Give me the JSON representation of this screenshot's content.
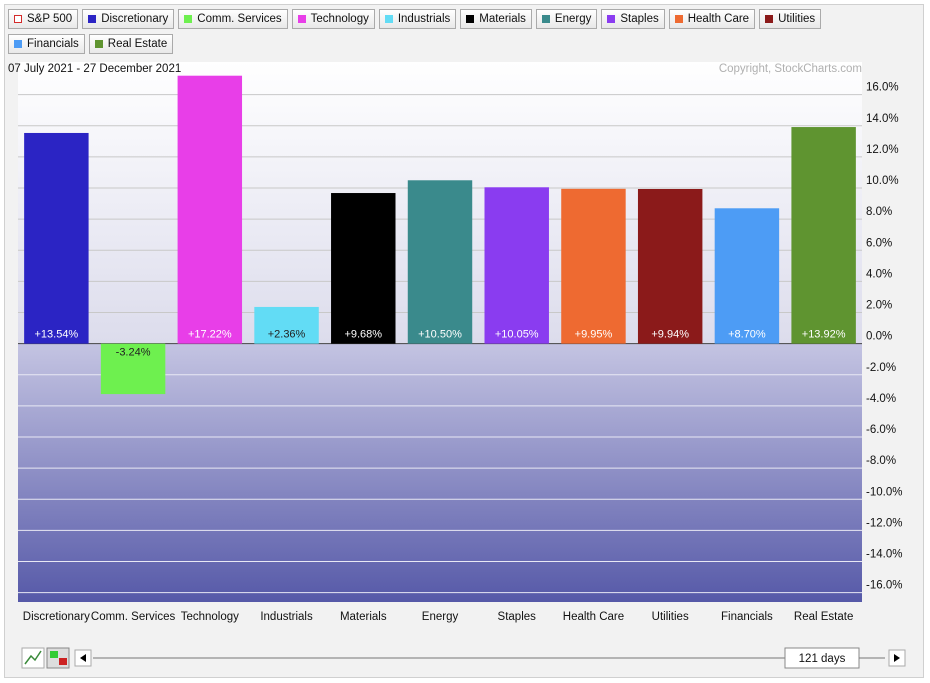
{
  "chart_data": {
    "type": "bar",
    "subtitle": "07 July 2021 - 27 December 2021",
    "annotation": "Copyright, StockCharts.com",
    "legend": [
      {
        "name": "S&P 500",
        "color": "#d42a2a",
        "hollow": true
      },
      {
        "name": "Discretionary",
        "color": "#2b24c4"
      },
      {
        "name": "Comm. Services",
        "color": "#6ef04f"
      },
      {
        "name": "Technology",
        "color": "#e83ee8"
      },
      {
        "name": "Industrials",
        "color": "#62dcf5"
      },
      {
        "name": "Materials",
        "color": "#000000"
      },
      {
        "name": "Energy",
        "color": "#3a8a8c"
      },
      {
        "name": "Staples",
        "color": "#8a3cf0"
      },
      {
        "name": "Health Care",
        "color": "#ee6a31"
      },
      {
        "name": "Utilities",
        "color": "#8b1a1a"
      },
      {
        "name": "Financials",
        "color": "#4d9cf5"
      },
      {
        "name": "Real Estate",
        "color": "#5f9430"
      }
    ],
    "categories": [
      "Discretionary",
      "Comm. Services",
      "Technology",
      "Industrials",
      "Materials",
      "Energy",
      "Staples",
      "Health Care",
      "Utilities",
      "Financials",
      "Real Estate"
    ],
    "values": [
      13.54,
      -3.24,
      17.22,
      2.36,
      9.68,
      10.5,
      10.05,
      9.95,
      9.94,
      8.7,
      13.92
    ],
    "value_labels": [
      "+13.54%",
      "-3.24%",
      "+17.22%",
      "+2.36%",
      "+9.68%",
      "+10.50%",
      "+10.05%",
      "+9.95%",
      "+9.94%",
      "+8.70%",
      "+13.92%"
    ],
    "colors": [
      "#2b24c4",
      "#6ef04f",
      "#e83ee8",
      "#62dcf5",
      "#000000",
      "#3a8a8c",
      "#8a3cf0",
      "#ee6a31",
      "#8b1a1a",
      "#4d9cf5",
      "#5f9430"
    ],
    "ylim": [
      -16.6,
      18.1
    ],
    "yticks": [
      {
        "value": 16,
        "label": "16.0%"
      },
      {
        "value": 14,
        "label": "14.0%"
      },
      {
        "value": 12,
        "label": "12.0%"
      },
      {
        "value": 10,
        "label": "10.0%"
      },
      {
        "value": 8,
        "label": "8.0%"
      },
      {
        "value": 6,
        "label": "6.0%"
      },
      {
        "value": 4,
        "label": "4.0%"
      },
      {
        "value": 2,
        "label": "2.0%"
      },
      {
        "value": 0,
        "label": "0.0%"
      },
      {
        "value": -2,
        "label": "-2.0%"
      },
      {
        "value": -4,
        "label": "-4.0%"
      },
      {
        "value": -6,
        "label": "-6.0%"
      },
      {
        "value": -8,
        "label": "-8.0%"
      },
      {
        "value": -10,
        "label": "-10.0%"
      },
      {
        "value": -12,
        "label": "-12.0%"
      },
      {
        "value": -14,
        "label": "-14.0%"
      },
      {
        "value": -16,
        "label": "-16.0%"
      }
    ],
    "grid": true,
    "period_label": "121 days"
  }
}
